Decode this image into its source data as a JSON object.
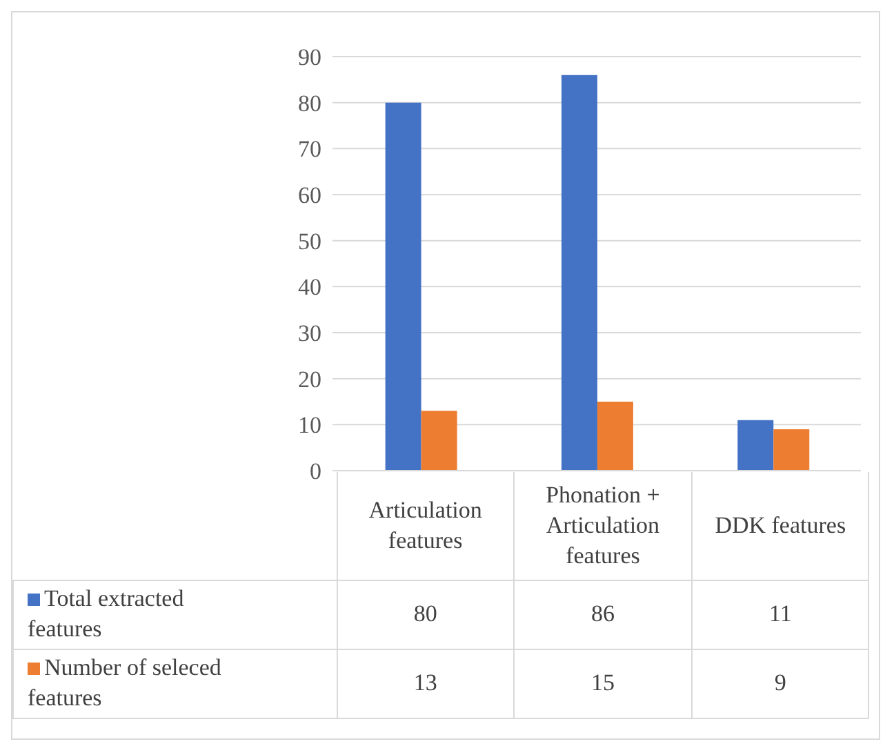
{
  "chart_data": {
    "type": "bar",
    "categories": [
      "Articulation features",
      "Phonation + Articulation features",
      "DDK features"
    ],
    "series": [
      {
        "name": "Total extracted features",
        "color": "#4472c4",
        "values": [
          80,
          86,
          11
        ]
      },
      {
        "name": "Number of seleced features",
        "color": "#ed7d31",
        "values": [
          13,
          15,
          9
        ]
      }
    ],
    "ylim": [
      0,
      90
    ],
    "yticks": [
      0,
      10,
      20,
      30,
      40,
      50,
      60,
      70,
      80,
      90
    ],
    "grid": "y",
    "legend": "bottom",
    "data_labels": true
  }
}
